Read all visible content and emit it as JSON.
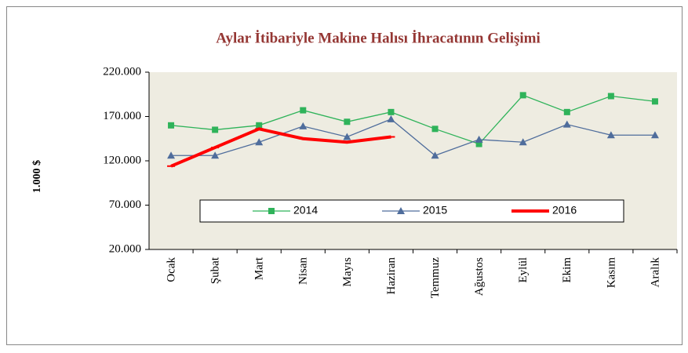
{
  "chart_data": {
    "type": "line",
    "title": "Aylar İtibariyle Makine Halısı İhracatının Gelişimi",
    "y_label": "1.000 $",
    "categories": [
      "Ocak",
      "Şubat",
      "Mart",
      "Nisan",
      "Mayıs",
      "Haziran",
      "Temmuz",
      "Ağustos",
      "Eylül",
      "Ekim",
      "Kasım",
      "Aralık"
    ],
    "series": [
      {
        "name": "2014",
        "color": "#2FB35A",
        "marker": "square",
        "values": [
          160000,
          155000,
          160000,
          177000,
          164000,
          175000,
          156000,
          139000,
          194000,
          175000,
          193000,
          187000
        ]
      },
      {
        "name": "2015",
        "color": "#4F6D9C",
        "marker": "triangle",
        "values": [
          126000,
          126000,
          141000,
          159000,
          147000,
          167000,
          126000,
          144000,
          141000,
          161000,
          149000,
          149000
        ]
      },
      {
        "name": "2016",
        "color": "#FF0000",
        "marker": "dash",
        "values": [
          114000,
          135000,
          156000,
          145000,
          141000,
          147000,
          null,
          null,
          null,
          null,
          null,
          null
        ]
      }
    ],
    "ylim": [
      20000,
      220000
    ],
    "yticks": [
      {
        "value": 20000,
        "label": "20.000"
      },
      {
        "value": 70000,
        "label": "70.000"
      },
      {
        "value": 120000,
        "label": "120.000"
      },
      {
        "value": 170000,
        "label": "170.000"
      },
      {
        "value": 220000,
        "label": "220.000"
      }
    ],
    "grid": false,
    "legend": "bottom"
  }
}
